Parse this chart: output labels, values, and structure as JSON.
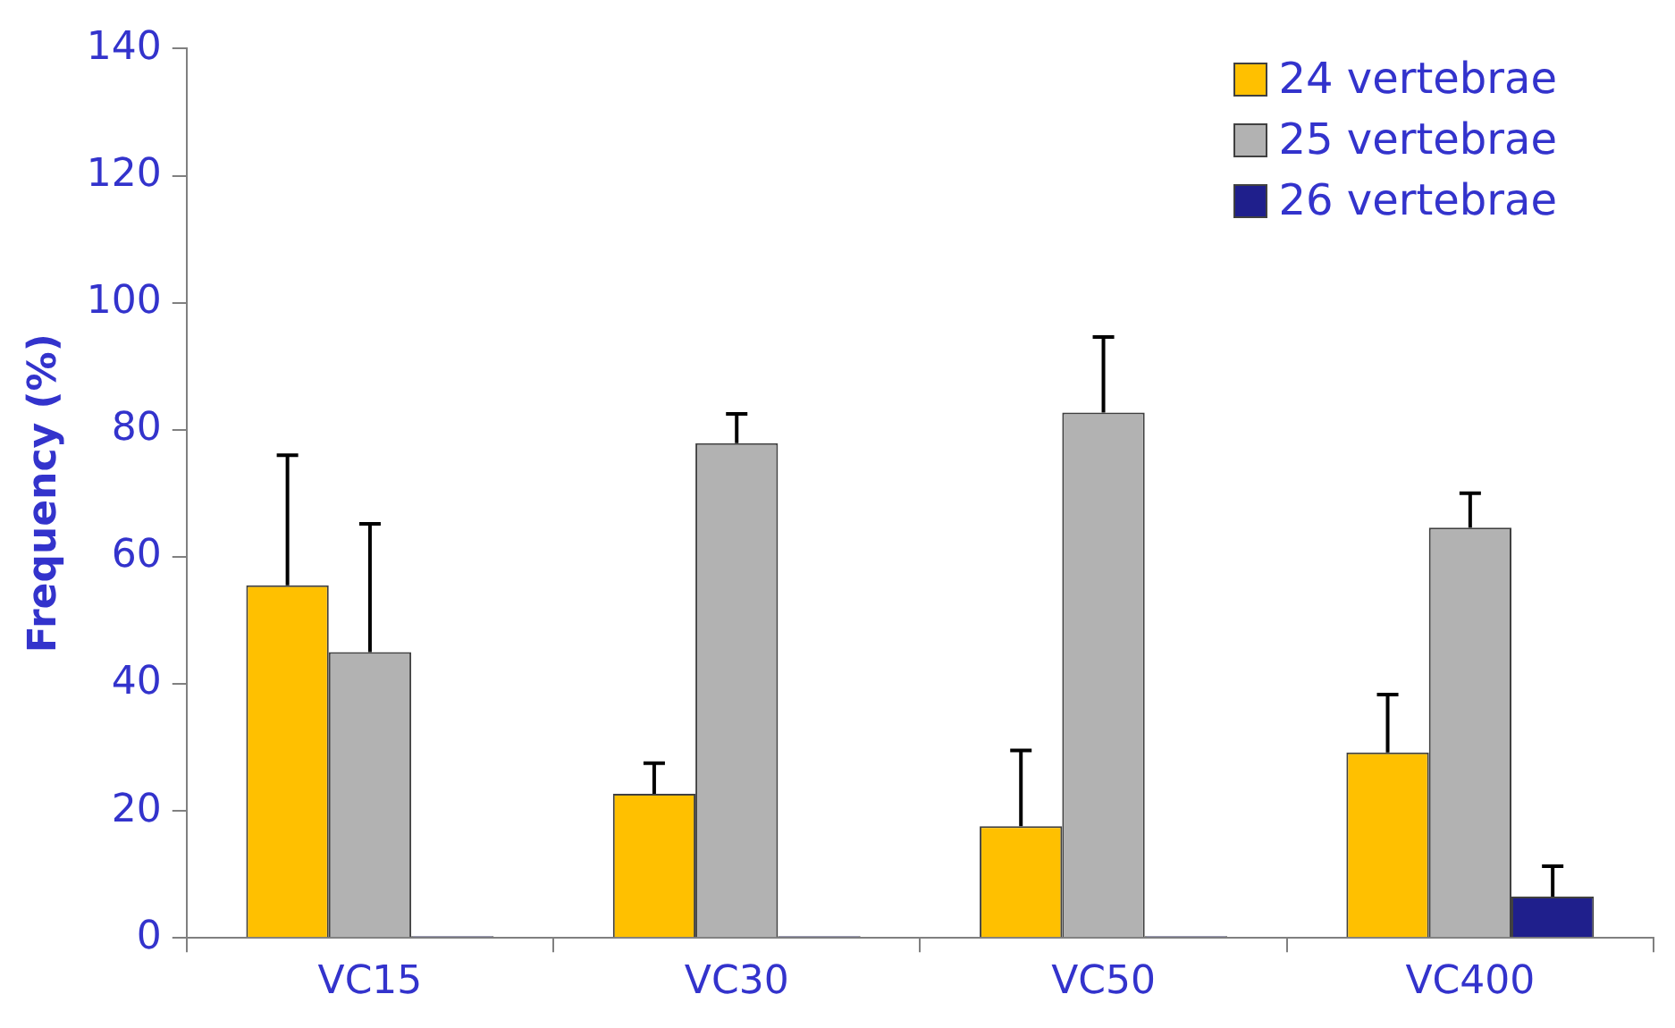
{
  "chart_data": {
    "type": "bar",
    "ylabel": "Frequency (%)",
    "categories": [
      "VC15",
      "VC30",
      "VC50",
      "VC400"
    ],
    "series": [
      {
        "name": "24 vertebrae",
        "color": "#ffc000",
        "values": [
          55.5,
          22.7,
          17.6,
          29.2
        ],
        "errors": [
          [
            55.5,
            76
          ],
          [
            22.7,
            27.5
          ],
          [
            17.6,
            29.5
          ],
          [
            29.2,
            38.3
          ]
        ]
      },
      {
        "name": "25 vertebrae",
        "color": "#b2b2b2",
        "values": [
          45,
          77.9,
          82.7,
          64.6
        ],
        "errors": [
          [
            45,
            65.2
          ],
          [
            77.9,
            82.5
          ],
          [
            82.7,
            94.6
          ],
          [
            64.6,
            70
          ]
        ]
      },
      {
        "name": "26 vertebrae",
        "color": "#1f1f8c",
        "values": [
          0,
          0,
          0,
          6.5
        ],
        "errors": [
          null,
          null,
          null,
          [
            6.5,
            11.3
          ]
        ]
      }
    ],
    "ylim": [
      0,
      140
    ],
    "yticks": [
      0,
      20,
      40,
      60,
      80,
      100,
      120,
      140
    ],
    "grid": false,
    "legend": "top right"
  }
}
